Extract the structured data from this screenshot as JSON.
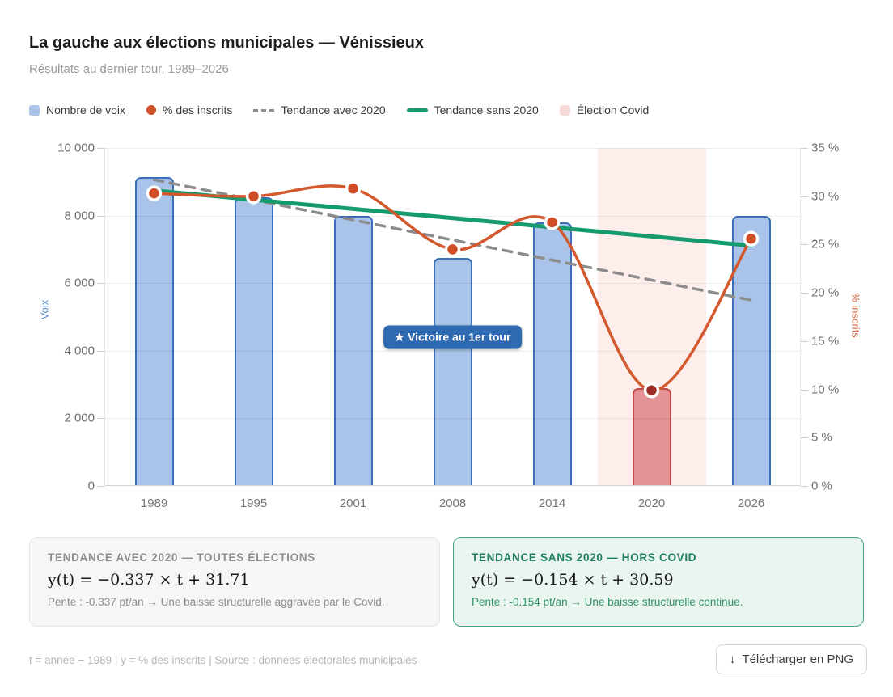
{
  "header": {
    "title": "La gauche aux élections municipales — Vénissieux",
    "subtitle": "Résultats au dernier tour, 1989–2026"
  },
  "legend": [
    {
      "label": "Nombre de voix",
      "swatch": "square",
      "color": "#a9c4e8"
    },
    {
      "label": "% des inscrits",
      "swatch": "dot",
      "color": "#cf4e28"
    },
    {
      "label": "Tendance avec 2020",
      "swatch": "dashed-line",
      "color": "#8c8c8c"
    },
    {
      "label": "Tendance sans 2020",
      "swatch": "solid-line",
      "color": "#159b6d"
    },
    {
      "label": "Élection Covid",
      "swatch": "square",
      "color": "#f7d9d7"
    }
  ],
  "chart_data": {
    "type": "bar",
    "categories": [
      "1989",
      "1995",
      "2001",
      "2008",
      "2014",
      "2020",
      "2026"
    ],
    "series": [
      {
        "name": "Nombre de voix",
        "type": "bar",
        "axis": "left",
        "values": [
          9150,
          8550,
          8000,
          6750,
          7800,
          2900,
          8000
        ]
      },
      {
        "name": "% des inscrits",
        "type": "line",
        "axis": "right",
        "values": [
          30.3,
          30.0,
          30.8,
          24.5,
          27.3,
          9.9,
          25.6
        ]
      }
    ],
    "trend_lines": [
      {
        "name": "Tendance avec 2020",
        "slope": -0.337,
        "intercept": 31.71,
        "style": "dashed",
        "color": "#8c8c8c"
      },
      {
        "name": "Tendance sans 2020",
        "slope": -0.154,
        "intercept": 30.59,
        "style": "solid",
        "color": "#159b6d"
      }
    ],
    "t_note": "t = année − 1989",
    "annotation": {
      "text": "★ Victoire au 1er tour",
      "category": "2008",
      "y_pct": 15.4
    },
    "covid": {
      "category": "2020",
      "band_label": "Élection Covid",
      "bar_color": "#e59296",
      "bar_border": "#bf4b4b",
      "dot_color": "#9c2b24",
      "band_color": "#fdeeec"
    },
    "left_axis": {
      "label": "Voix",
      "min": 0,
      "max": 10000,
      "color": "#5a8fd2",
      "tick_labels": [
        "0",
        "2 000",
        "4 000",
        "6 000",
        "8 000",
        "10 000"
      ]
    },
    "right_axis": {
      "label": "% inscrits",
      "min": 0,
      "max": 35,
      "color": "#d2603a",
      "tick_labels": [
        "0 %",
        "5 %",
        "10 %",
        "15 %",
        "20 %",
        "25 %",
        "30 %",
        "35 %"
      ]
    },
    "bar_color": "#a9c4e8",
    "bar_border": "#3a6fba",
    "line_color": "#d4582d",
    "grid": true,
    "legend_position": "top"
  },
  "info_boxes": [
    {
      "variant": "gray",
      "header": "TENDANCE AVEC 2020 — TOUTES ÉLECTIONS",
      "formula": "y(t) = −0.337 × t + 31.71",
      "note": "Pente : -0.337 pt/an → Une baisse structurelle aggravée par le Covid."
    },
    {
      "variant": "green",
      "header": "TENDANCE SANS 2020 — HORS COVID",
      "formula": "y(t) = −0.154 × t + 30.59",
      "note": "Pente : -0.154 pt/an → Une baisse structurelle continue."
    }
  ],
  "footer": {
    "meta": "t = année − 1989  |  y = % des inscrits  |  Source : données électorales municipales",
    "download_icon": "↓",
    "download_label": "Télécharger en PNG"
  }
}
